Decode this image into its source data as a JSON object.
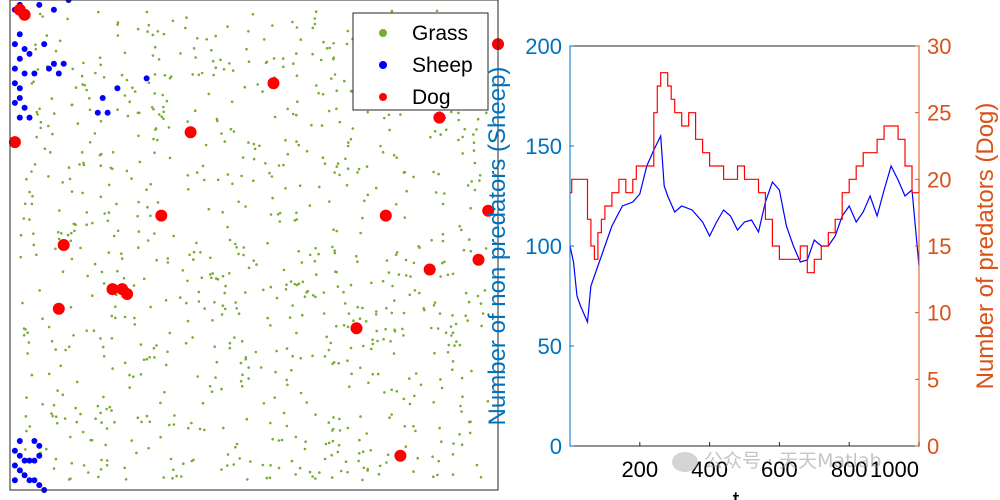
{
  "chart_data": [
    {
      "type": "scatter",
      "xlim": [
        0,
        100
      ],
      "ylim": [
        0,
        100
      ],
      "grid": false,
      "legend": {
        "placement": "top-right",
        "entries": [
          {
            "label": "Grass",
            "color": "#77AC30"
          },
          {
            "label": "Sheep",
            "color": "#0000FF"
          },
          {
            "label": "Dog",
            "color": "#FF0000"
          }
        ]
      },
      "series": [
        {
          "name": "Grass",
          "color": "#77AC30",
          "count_approx": 900,
          "distribution": "scattered across the field"
        },
        {
          "name": "Sheep",
          "color": "#0000FF",
          "points": [
            [
              1,
              98
            ],
            [
              2,
              99
            ],
            [
              3,
              97
            ],
            [
              6,
              99
            ],
            [
              9,
              98
            ],
            [
              12,
              100
            ],
            [
              2,
              93
            ],
            [
              1,
              91
            ],
            [
              3,
              90
            ],
            [
              4,
              89
            ],
            [
              2,
              88
            ],
            [
              1,
              86
            ],
            [
              3,
              85
            ],
            [
              5,
              85
            ],
            [
              8,
              86
            ],
            [
              10,
              85
            ],
            [
              2,
              80
            ],
            [
              1,
              79
            ],
            [
              3,
              78
            ],
            [
              2,
              76
            ],
            [
              4,
              76
            ],
            [
              1,
              83
            ],
            [
              2,
              82
            ],
            [
              9,
              87
            ],
            [
              11,
              87
            ],
            [
              7,
              91
            ],
            [
              22,
              82
            ],
            [
              28,
              84
            ],
            [
              19,
              80
            ],
            [
              18,
              77
            ],
            [
              20,
              77
            ],
            [
              1,
              8
            ],
            [
              2,
              7
            ],
            [
              3,
              6
            ],
            [
              4,
              6
            ],
            [
              5,
              6
            ],
            [
              6,
              7
            ],
            [
              1,
              5
            ],
            [
              2,
              4
            ],
            [
              3,
              3
            ],
            [
              4,
              2
            ],
            [
              5,
              2
            ],
            [
              6,
              1
            ],
            [
              7,
              0
            ],
            [
              1,
              2
            ],
            [
              5,
              10
            ],
            [
              6,
              9
            ],
            [
              2,
              10
            ]
          ]
        },
        {
          "name": "Dog",
          "color": "#FF0000",
          "points": [
            [
              2,
              98
            ],
            [
              3,
              97
            ],
            [
              1,
              71
            ],
            [
              54,
              83
            ],
            [
              37,
              73
            ],
            [
              88,
              76
            ],
            [
              31,
              56
            ],
            [
              77,
              56
            ],
            [
              98,
              57
            ],
            [
              11,
              50
            ],
            [
              96,
              47
            ],
            [
              86,
              45
            ],
            [
              21,
              41
            ],
            [
              23,
              41
            ],
            [
              24,
              40
            ],
            [
              10,
              37
            ],
            [
              71,
              33
            ],
            [
              80,
              7
            ],
            [
              100,
              91
            ]
          ]
        }
      ]
    },
    {
      "type": "line",
      "xlabel": "t",
      "ylabel": "Number of non predators (Sheep)",
      "ylabel_right": "Number of predators (Dog)",
      "xlim": [
        0,
        1000
      ],
      "ylim": [
        0,
        200
      ],
      "ylim_right": [
        0,
        30
      ],
      "xticks": [
        200,
        400,
        600,
        800,
        1000
      ],
      "yticks": [
        0,
        50,
        100,
        150,
        200
      ],
      "yticks_right": [
        0,
        5,
        10,
        15,
        20,
        25,
        30
      ],
      "grid": false,
      "series": [
        {
          "name": "Sheep",
          "axis": "left",
          "color": "#0000FF",
          "x": [
            0,
            10,
            20,
            30,
            40,
            50,
            60,
            70,
            80,
            100,
            120,
            150,
            180,
            200,
            220,
            240,
            260,
            270,
            280,
            300,
            320,
            350,
            380,
            400,
            420,
            440,
            460,
            480,
            500,
            520,
            540,
            560,
            580,
            600,
            620,
            640,
            660,
            680,
            700,
            720,
            740,
            760,
            780,
            800,
            820,
            840,
            860,
            880,
            900,
            920,
            940,
            960,
            980,
            1000
          ],
          "y": [
            100,
            92,
            75,
            70,
            66,
            62,
            80,
            85,
            90,
            100,
            110,
            120,
            122,
            126,
            140,
            148,
            155,
            130,
            125,
            117,
            120,
            118,
            112,
            105,
            112,
            118,
            115,
            108,
            112,
            113,
            107,
            122,
            132,
            128,
            110,
            100,
            92,
            93,
            103,
            100,
            100,
            105,
            115,
            120,
            112,
            117,
            125,
            115,
            128,
            140,
            133,
            125,
            128,
            90
          ]
        },
        {
          "name": "Dog",
          "axis": "right",
          "color": "#FF0000",
          "x": [
            0,
            5,
            10,
            40,
            50,
            60,
            70,
            80,
            90,
            100,
            120,
            140,
            160,
            170,
            180,
            190,
            200,
            220,
            240,
            250,
            260,
            280,
            290,
            300,
            310,
            320,
            340,
            360,
            380,
            400,
            420,
            440,
            460,
            480,
            500,
            520,
            540,
            560,
            580,
            600,
            620,
            640,
            660,
            680,
            700,
            720,
            740,
            760,
            780,
            800,
            820,
            840,
            860,
            870,
            880,
            900,
            920,
            940,
            960,
            980,
            1000
          ],
          "y": [
            19,
            20,
            20,
            20,
            17,
            15,
            14,
            16,
            17,
            18,
            19,
            20,
            19,
            19,
            20,
            21,
            21,
            21,
            25,
            27,
            28,
            27,
            26,
            25,
            25,
            24,
            25,
            23,
            22,
            21,
            21,
            20,
            20,
            21,
            20,
            20,
            19,
            17,
            15,
            14,
            14,
            14,
            15,
            13,
            14,
            15,
            16,
            17,
            19,
            20,
            21,
            22,
            22,
            22,
            23,
            24,
            24,
            23,
            21,
            19,
            20
          ]
        }
      ]
    }
  ],
  "watermark": "公众号 · 天天Matlab"
}
